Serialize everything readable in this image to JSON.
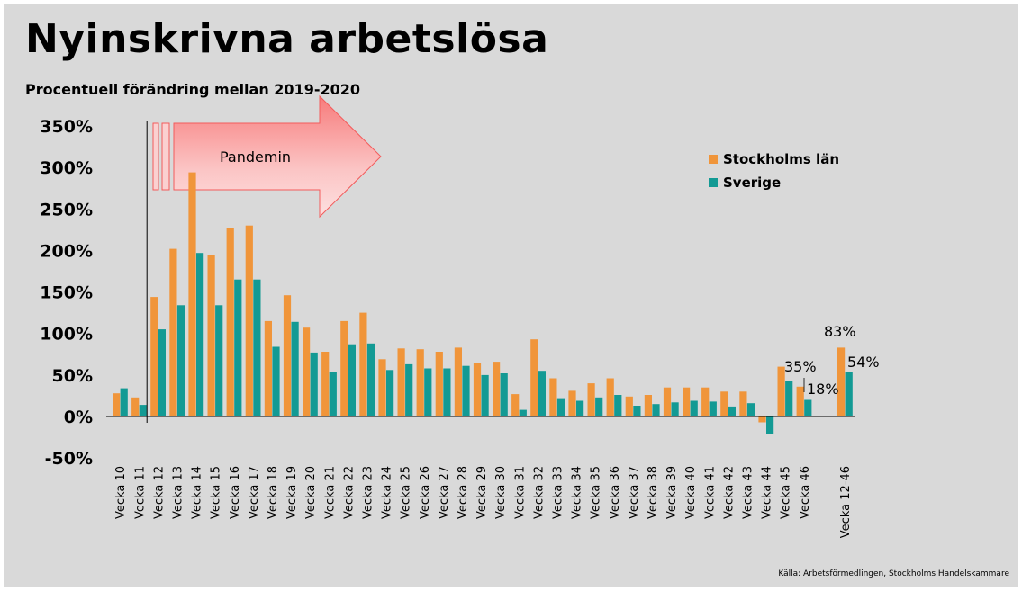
{
  "title": "Nyinskrivna arbetslösa",
  "subtitle": "Procentuell förändring mellan 2019-2020",
  "source": "Källa: Arbetsförmedlingen, Stockholms Handelskammare",
  "colors": {
    "stockholm": "#f0953a",
    "sverige": "#139a94",
    "arrow": "#f35b5b"
  },
  "annotation": {
    "arrow_label": "Pandemin"
  },
  "chart_data": {
    "type": "bar",
    "title": "Nyinskrivna arbetslösa",
    "subtitle": "Procentuell förändring mellan 2019-2020",
    "ylim": [
      -50,
      350
    ],
    "yticks": [
      "-50%",
      "0%",
      "50%",
      "100%",
      "150%",
      "200%",
      "250%",
      "300%",
      "350%"
    ],
    "ytick_values": [
      -50,
      0,
      50,
      100,
      150,
      200,
      250,
      300,
      350
    ],
    "grid": false,
    "legend_position": "top-right",
    "categories": [
      "Vecka 10",
      "Vecka 11",
      "Vecka 12",
      "Vecka 13",
      "Vecka 14",
      "Vecka 15",
      "Vecka 16",
      "Vecka 17",
      "Vecka 18",
      "Vecka 19",
      "Vecka 20",
      "Vecka 21",
      "Vecka 22",
      "Vecka 23",
      "Vecka 24",
      "Vecka 25",
      "Vecka 26",
      "Vecka 27",
      "Vecka 28",
      "Vecka 29",
      "Vecka 30",
      "Vecka 31",
      "Vecka 32",
      "Vecka 33",
      "Vecka 34",
      "Vecka 35",
      "Vecka 36",
      "Vecka 37",
      "Vecka 38",
      "Vecka 39",
      "Vecka 40",
      "Vecka 41",
      "Vecka 42",
      "Vecka 43",
      "Vecka 44",
      "Vecka 45",
      "Vecka 46",
      "Vecka 12-46"
    ],
    "series": [
      {
        "name": "Stockholms län",
        "values": [
          28,
          23,
          144,
          202,
          294,
          195,
          227,
          230,
          115,
          146,
          107,
          78,
          115,
          125,
          69,
          82,
          81,
          78,
          83,
          65,
          66,
          27,
          93,
          46,
          31,
          40,
          46,
          24,
          26,
          35,
          35,
          35,
          30,
          30,
          -7,
          60,
          36,
          83
        ]
      },
      {
        "name": "Sverige",
        "values": [
          34,
          14,
          105,
          134,
          197,
          134,
          165,
          165,
          84,
          114,
          77,
          54,
          87,
          88,
          56,
          63,
          58,
          58,
          61,
          50,
          52,
          8,
          55,
          21,
          19,
          23,
          26,
          13,
          15,
          17,
          19,
          18,
          12,
          16,
          -21,
          43,
          20,
          54
        ]
      }
    ],
    "annotations": [
      "83%",
      "54%",
      "35%",
      "18%"
    ],
    "pandemic_start": "Vecka 12"
  }
}
